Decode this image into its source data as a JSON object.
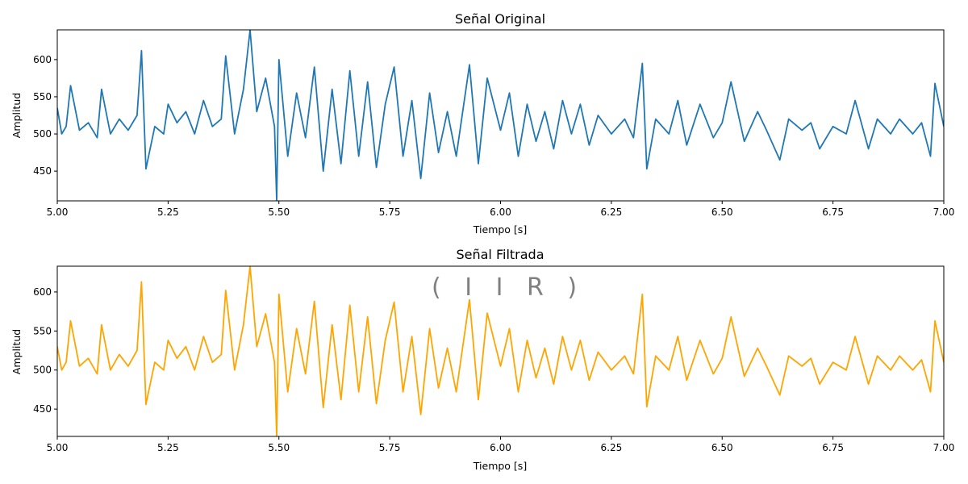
{
  "chart_data": [
    {
      "type": "line",
      "title": "Señal Original",
      "xlabel": "Tiempo [s]",
      "ylabel": "Amplitud",
      "xlim": [
        5.0,
        7.0
      ],
      "ylim": [
        410,
        640
      ],
      "x_ticks": [
        "5.00",
        "5.25",
        "5.50",
        "5.75",
        "6.00",
        "6.25",
        "6.50",
        "6.75",
        "7.00"
      ],
      "y_ticks": [
        "450",
        "500",
        "550",
        "600"
      ],
      "grid": false,
      "series": [
        {
          "color": "#1f77b4",
          "x": [
            5.0,
            5.01,
            5.02,
            5.03,
            5.05,
            5.07,
            5.09,
            5.1,
            5.12,
            5.14,
            5.16,
            5.18,
            5.19,
            5.2,
            5.22,
            5.24,
            5.25,
            5.27,
            5.29,
            5.31,
            5.33,
            5.35,
            5.37,
            5.38,
            5.4,
            5.42,
            5.435,
            5.45,
            5.47,
            5.49,
            5.495,
            5.5,
            5.52,
            5.54,
            5.56,
            5.58,
            5.6,
            5.62,
            5.64,
            5.66,
            5.68,
            5.7,
            5.72,
            5.74,
            5.76,
            5.78,
            5.8,
            5.82,
            5.84,
            5.86,
            5.88,
            5.9,
            5.93,
            5.95,
            5.97,
            6.0,
            6.02,
            6.04,
            6.06,
            6.08,
            6.1,
            6.12,
            6.14,
            6.16,
            6.18,
            6.2,
            6.22,
            6.25,
            6.28,
            6.3,
            6.32,
            6.33,
            6.35,
            6.38,
            6.4,
            6.42,
            6.45,
            6.48,
            6.5,
            6.52,
            6.55,
            6.58,
            6.6,
            6.63,
            6.65,
            6.68,
            6.7,
            6.72,
            6.75,
            6.78,
            6.8,
            6.83,
            6.85,
            6.88,
            6.9,
            6.93,
            6.95,
            6.97,
            6.98,
            7.0
          ],
          "y": [
            535,
            500,
            510,
            565,
            505,
            515,
            495,
            560,
            500,
            520,
            505,
            525,
            612,
            453,
            510,
            500,
            540,
            515,
            530,
            500,
            545,
            510,
            520,
            605,
            500,
            560,
            640,
            530,
            575,
            510,
            410,
            600,
            470,
            555,
            495,
            590,
            450,
            560,
            460,
            585,
            470,
            570,
            455,
            540,
            590,
            470,
            545,
            440,
            555,
            475,
            530,
            470,
            593,
            460,
            575,
            505,
            555,
            470,
            540,
            490,
            530,
            480,
            545,
            500,
            540,
            485,
            525,
            500,
            520,
            495,
            595,
            453,
            520,
            500,
            545,
            485,
            540,
            495,
            515,
            570,
            490,
            530,
            505,
            465,
            520,
            505,
            515,
            480,
            510,
            500,
            545,
            480,
            520,
            500,
            520,
            500,
            515,
            470,
            568,
            510
          ]
        }
      ]
    },
    {
      "type": "line",
      "title": "Señal Filtrada",
      "xlabel": "Tiempo [s]",
      "ylabel": "Amplitud",
      "xlim": [
        5.0,
        7.0
      ],
      "ylim": [
        415,
        633
      ],
      "x_ticks": [
        "5.00",
        "5.25",
        "5.50",
        "5.75",
        "6.00",
        "6.25",
        "6.50",
        "6.75",
        "7.00"
      ],
      "y_ticks": [
        "450",
        "500",
        "550",
        "600"
      ],
      "grid": false,
      "annotation": "( I I R )",
      "series": [
        {
          "color": "#ffa500",
          "x": [
            5.0,
            5.01,
            5.02,
            5.03,
            5.05,
            5.07,
            5.09,
            5.1,
            5.12,
            5.14,
            5.16,
            5.18,
            5.19,
            5.2,
            5.22,
            5.24,
            5.25,
            5.27,
            5.29,
            5.31,
            5.33,
            5.35,
            5.37,
            5.38,
            5.4,
            5.42,
            5.435,
            5.45,
            5.47,
            5.49,
            5.495,
            5.5,
            5.52,
            5.54,
            5.56,
            5.58,
            5.6,
            5.62,
            5.64,
            5.66,
            5.68,
            5.7,
            5.72,
            5.74,
            5.76,
            5.78,
            5.8,
            5.82,
            5.84,
            5.86,
            5.88,
            5.9,
            5.93,
            5.95,
            5.97,
            6.0,
            6.02,
            6.04,
            6.06,
            6.08,
            6.1,
            6.12,
            6.14,
            6.16,
            6.18,
            6.2,
            6.22,
            6.25,
            6.28,
            6.3,
            6.32,
            6.33,
            6.35,
            6.38,
            6.4,
            6.42,
            6.45,
            6.48,
            6.5,
            6.52,
            6.55,
            6.58,
            6.6,
            6.63,
            6.65,
            6.68,
            6.7,
            6.72,
            6.75,
            6.78,
            6.8,
            6.83,
            6.85,
            6.88,
            6.9,
            6.93,
            6.95,
            6.97,
            6.98,
            7.0
          ],
          "y": [
            530,
            500,
            510,
            563,
            505,
            515,
            495,
            558,
            500,
            520,
            505,
            525,
            613,
            456,
            510,
            500,
            538,
            515,
            530,
            500,
            543,
            510,
            520,
            602,
            500,
            558,
            633,
            530,
            572,
            510,
            415,
            597,
            472,
            553,
            495,
            588,
            452,
            558,
            462,
            583,
            472,
            568,
            457,
            538,
            587,
            472,
            543,
            443,
            553,
            477,
            528,
            472,
            590,
            462,
            573,
            505,
            553,
            472,
            538,
            490,
            528,
            482,
            543,
            500,
            538,
            487,
            523,
            500,
            518,
            495,
            597,
            453,
            518,
            500,
            543,
            487,
            538,
            495,
            515,
            568,
            492,
            528,
            505,
            468,
            518,
            505,
            515,
            482,
            510,
            500,
            543,
            482,
            518,
            500,
            518,
            500,
            513,
            472,
            563,
            510
          ]
        }
      ]
    }
  ]
}
